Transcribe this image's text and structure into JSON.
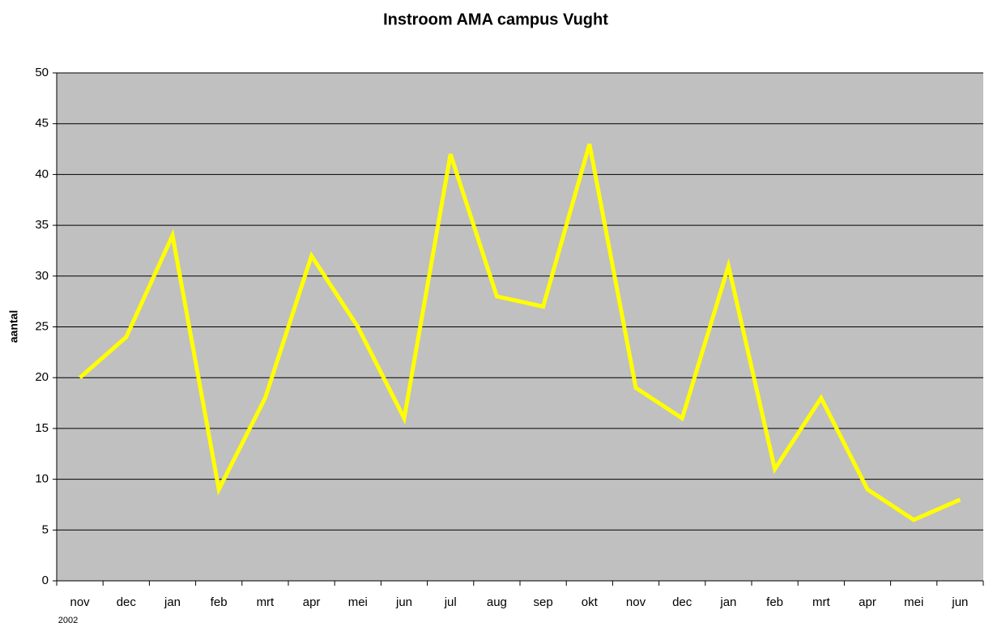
{
  "chart_data": {
    "type": "line",
    "title": "Instroom AMA campus Vught",
    "y_label": "aantal",
    "annotation": "2002",
    "categories": [
      "nov",
      "dec",
      "jan",
      "feb",
      "mrt",
      "apr",
      "mei",
      "jun",
      "jul",
      "aug",
      "sep",
      "okt",
      "nov",
      "dec",
      "jan",
      "feb",
      "mrt",
      "apr",
      "mei",
      "jun"
    ],
    "series": [
      {
        "name": "aantal",
        "color": "#ffff00",
        "values": [
          20,
          24,
          34,
          9,
          18,
          32,
          25,
          16,
          42,
          28,
          27,
          43,
          19,
          16,
          31,
          11,
          18,
          9,
          6,
          8
        ]
      }
    ],
    "ylim": [
      0,
      50
    ],
    "yticks": [
      0,
      5,
      10,
      15,
      20,
      25,
      30,
      35,
      40,
      45,
      50
    ],
    "grid": true,
    "plot_background": "#c0c0c0",
    "legend": false
  }
}
